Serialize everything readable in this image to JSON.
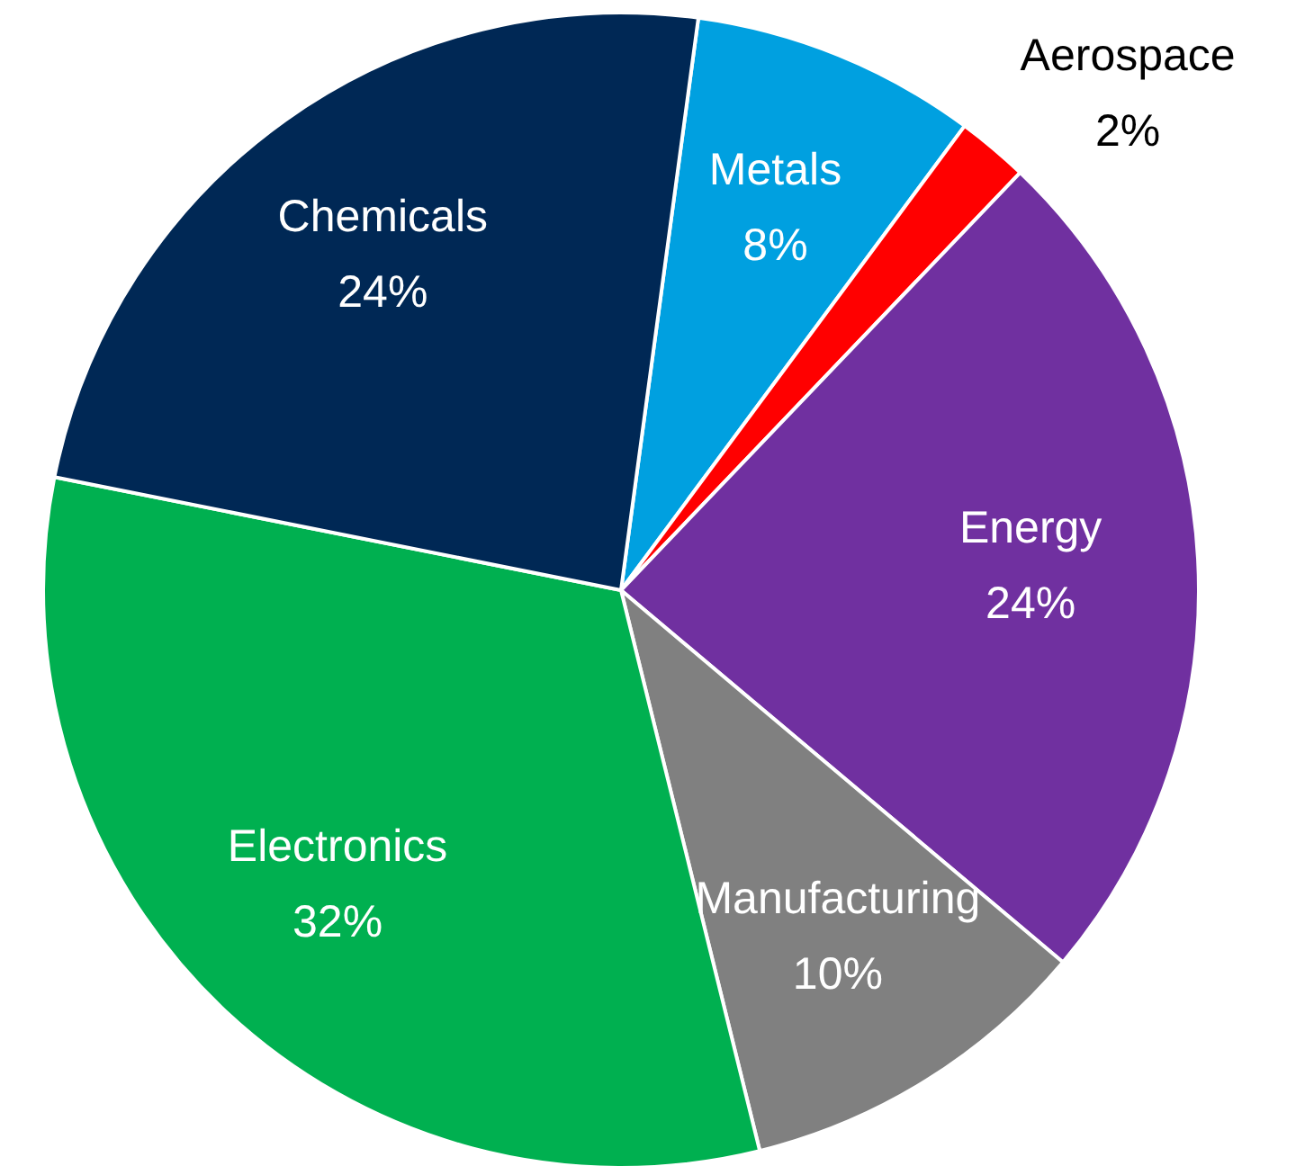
{
  "chart_data": {
    "type": "pie",
    "categories": [
      "Metals",
      "Aerospace",
      "Energy",
      "Manufacturing",
      "Electronics",
      "Chemicals"
    ],
    "values": [
      8,
      2,
      24,
      10,
      32,
      24
    ],
    "colors": [
      "#00a0e0",
      "#ff0000",
      "#7030a0",
      "#808080",
      "#00b050",
      "#002855"
    ],
    "value_labels": [
      "8%",
      "2%",
      "24%",
      "10%",
      "32%",
      "24%"
    ],
    "legend": false
  }
}
